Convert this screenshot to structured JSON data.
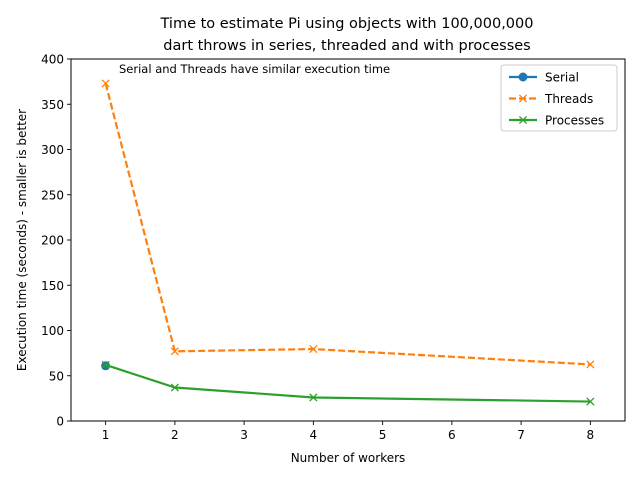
{
  "chart_data": {
    "type": "line",
    "title_lines": [
      "Time to estimate Pi using objects with 100,000,000",
      "dart throws in series, threaded and with processes"
    ],
    "xlabel": "Number of workers",
    "ylabel": "Execution time (seconds) - smaller is better",
    "xlim": [
      0.5,
      8.5
    ],
    "ylim": [
      0,
      400
    ],
    "xticks": [
      1,
      2,
      3,
      4,
      5,
      6,
      7,
      8
    ],
    "yticks": [
      0,
      50,
      100,
      150,
      200,
      250,
      300,
      350,
      400
    ],
    "grid": false,
    "legend_position": "upper right",
    "annotation": "Serial and Threads have similar execution time",
    "series": [
      {
        "name": "Serial",
        "color": "#1f77b4",
        "marker": "circle",
        "line": "solid",
        "x": [
          1
        ],
        "y": [
          61
        ]
      },
      {
        "name": "Threads",
        "color": "#ff7f0e",
        "marker": "x",
        "line": "dashed",
        "x": [
          1,
          2,
          4,
          8
        ],
        "y": [
          373,
          77,
          79.5,
          62.5
        ]
      },
      {
        "name": "Processes",
        "color": "#2ca02c",
        "marker": "x",
        "line": "solid",
        "x": [
          1,
          2,
          4,
          8
        ],
        "y": [
          62,
          37,
          26,
          21.5
        ]
      }
    ]
  }
}
